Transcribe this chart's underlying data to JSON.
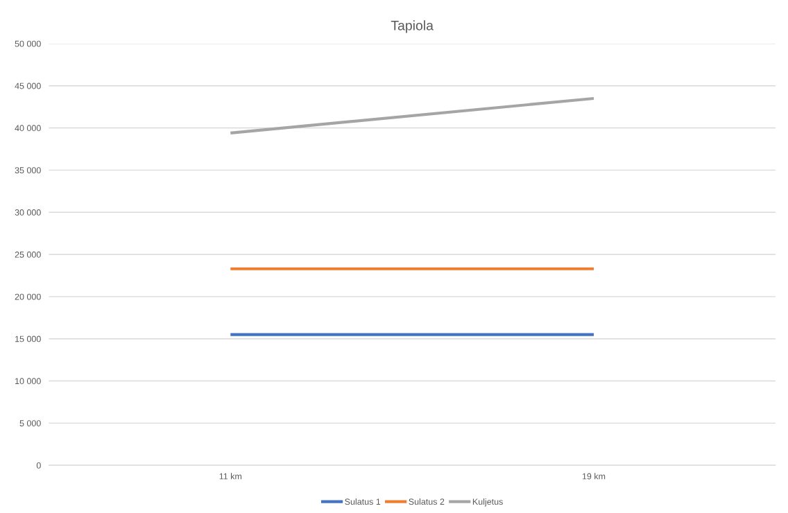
{
  "chart_data": {
    "type": "line",
    "title": "Tapiola",
    "categories": [
      "11 km",
      "19 km"
    ],
    "series": [
      {
        "name": "Sulatus 1",
        "color": "#4472c4",
        "values": [
          15500,
          15500
        ]
      },
      {
        "name": "Sulatus 2",
        "color": "#ed7d31",
        "values": [
          23300,
          23300
        ]
      },
      {
        "name": "Kuljetus",
        "color": "#a5a5a5",
        "values": [
          39400,
          43500
        ]
      }
    ],
    "ylim": [
      0,
      50000
    ],
    "yticks": [
      {
        "value": 0,
        "label": "0"
      },
      {
        "value": 5000,
        "label": "5 000"
      },
      {
        "value": 10000,
        "label": "10 000"
      },
      {
        "value": 15000,
        "label": "15 000"
      },
      {
        "value": 20000,
        "label": "20 000"
      },
      {
        "value": 25000,
        "label": "25 000"
      },
      {
        "value": 30000,
        "label": "30 000"
      },
      {
        "value": 35000,
        "label": "35 000"
      },
      {
        "value": 40000,
        "label": "40 000"
      },
      {
        "value": 45000,
        "label": "45 000"
      },
      {
        "value": 50000,
        "label": "50 000"
      }
    ],
    "grid": "y",
    "legend": "bottom",
    "marker": "none",
    "line_style": "solid"
  }
}
